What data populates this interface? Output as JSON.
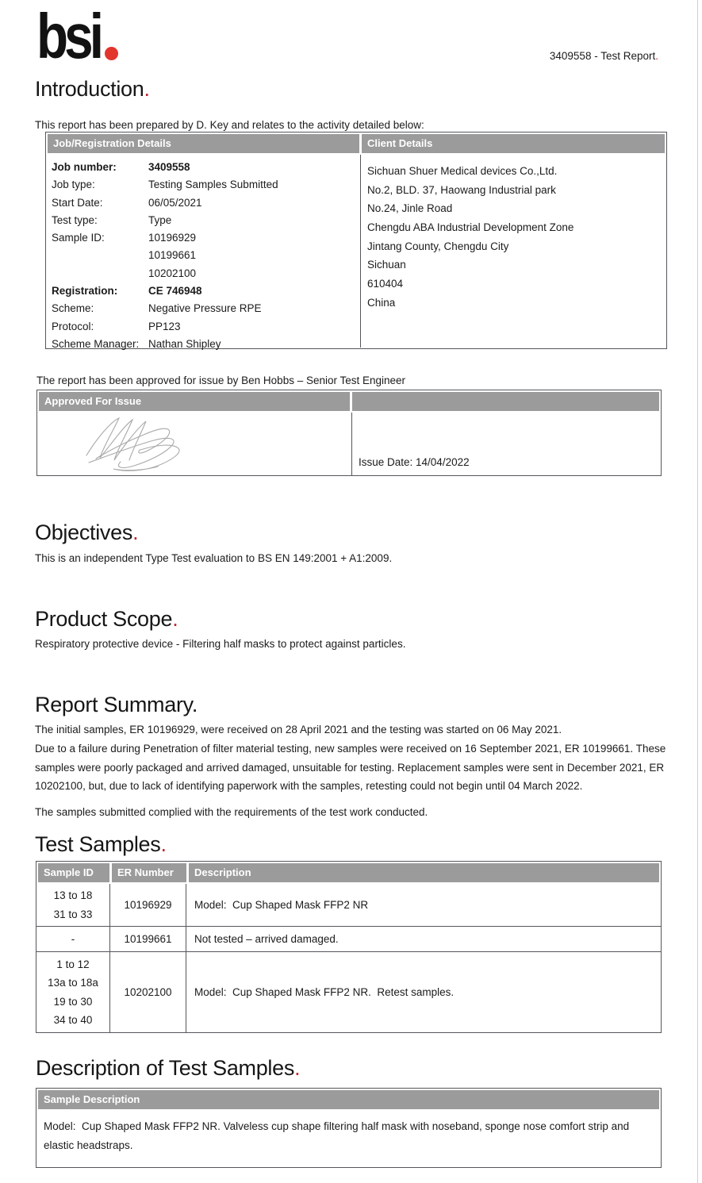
{
  "ui": {
    "period": "."
  },
  "colors": {
    "brand_red": "#e2352c",
    "accent_period_red": "#c4232b",
    "table_header_bg": "#9b9b9b",
    "table_border": "#54565a",
    "text": "#1b1b1b",
    "signature_gray": "#a9a9a9",
    "page_edge": "#cfcfcf"
  },
  "page": {
    "logo_text": "bsi",
    "report_ref": "3409558 - Test Report"
  },
  "introduction": {
    "heading": "Introduction",
    "intro_line": "This report has been prepared by D. Key and relates to the activity detailed below:",
    "job_details": {
      "header": "Job/Registration Details",
      "rows": [
        {
          "label": "Job number:",
          "value": "3409558",
          "bold": true
        },
        {
          "label": "Job type:",
          "value": "Testing Samples Submitted",
          "bold": false
        },
        {
          "label": "Start Date:",
          "value": "06/05/2021",
          "bold": false
        },
        {
          "label": "Test type:",
          "value": "Type",
          "bold": false
        },
        {
          "label": "Sample ID:",
          "value": "10196929",
          "bold": false
        },
        {
          "label": "",
          "value": "10199661",
          "bold": false
        },
        {
          "label": "",
          "value": "10202100",
          "bold": false
        },
        {
          "label": "Registration:",
          "value": "CE 746948",
          "bold": true
        },
        {
          "label": "Scheme:",
          "value": "Negative Pressure RPE",
          "bold": false
        },
        {
          "label": "Protocol:",
          "value": "PP123",
          "bold": false
        },
        {
          "label": "Scheme Manager:",
          "value": "Nathan Shipley",
          "bold": false
        }
      ]
    },
    "client_details": {
      "header": "Client Details",
      "lines": [
        "Sichuan Shuer Medical devices Co.,Ltd.",
        "No.2, BLD. 37, Haowang Industrial park",
        "No.24, Jinle Road",
        "Chengdu ABA Industrial Development Zone",
        "Jintang County, Chengdu City",
        "Sichuan",
        "610404",
        "China"
      ]
    }
  },
  "approval": {
    "intro_line": "The report has been approved for issue by Ben Hobbs – Senior Test Engineer",
    "header": "Approved For Issue",
    "issue_date": "Issue Date: 14/04/2022"
  },
  "objectives": {
    "heading": "Objectives",
    "text": "This is an independent Type Test evaluation to BS EN 149:2001 + A1:2009."
  },
  "product_scope": {
    "heading": "Product Scope",
    "text": "Respiratory protective device - Filtering half masks to protect against particles."
  },
  "report_summary": {
    "heading": "Report Summary",
    "paragraphs": [
      "The initial samples, ER 10196929, were received on 28 April 2021 and the testing was started on 06 May 2021.",
      "Due to a failure during Penetration of filter material testing, new samples were received on 16 September 2021, ER 10199661. These samples were poorly packaged and arrived damaged, unsuitable for testing.  Replacement samples were sent in December 2021, ER 10202100, but, due to lack of identifying paperwork with the samples, retesting could not begin until 04 March 2022.",
      "The samples submitted complied with the requirements of the test work conducted."
    ]
  },
  "test_samples": {
    "heading": "Test Samples",
    "table": {
      "headers": [
        "Sample ID",
        "ER Number",
        "Description"
      ],
      "rows": [
        {
          "sample_id": [
            "13 to 18",
            "31 to 33"
          ],
          "er_number": "10196929",
          "description": "Model:  Cup Shaped Mask FFP2 NR"
        },
        {
          "sample_id": [
            "-"
          ],
          "er_number": "10199661",
          "description": "Not tested – arrived damaged."
        },
        {
          "sample_id": [
            "1 to 12",
            "13a to 18a",
            "19 to 30",
            "34 to 40"
          ],
          "er_number": "10202100",
          "description": "Model:  Cup Shaped Mask FFP2 NR.  Retest samples."
        }
      ]
    }
  },
  "sample_description": {
    "heading": "Description of Test Samples",
    "header": "Sample Description",
    "text": "Model:  Cup Shaped Mask FFP2 NR. Valveless cup shape filtering half mask with noseband, sponge nose comfort strip and elastic headstraps."
  }
}
